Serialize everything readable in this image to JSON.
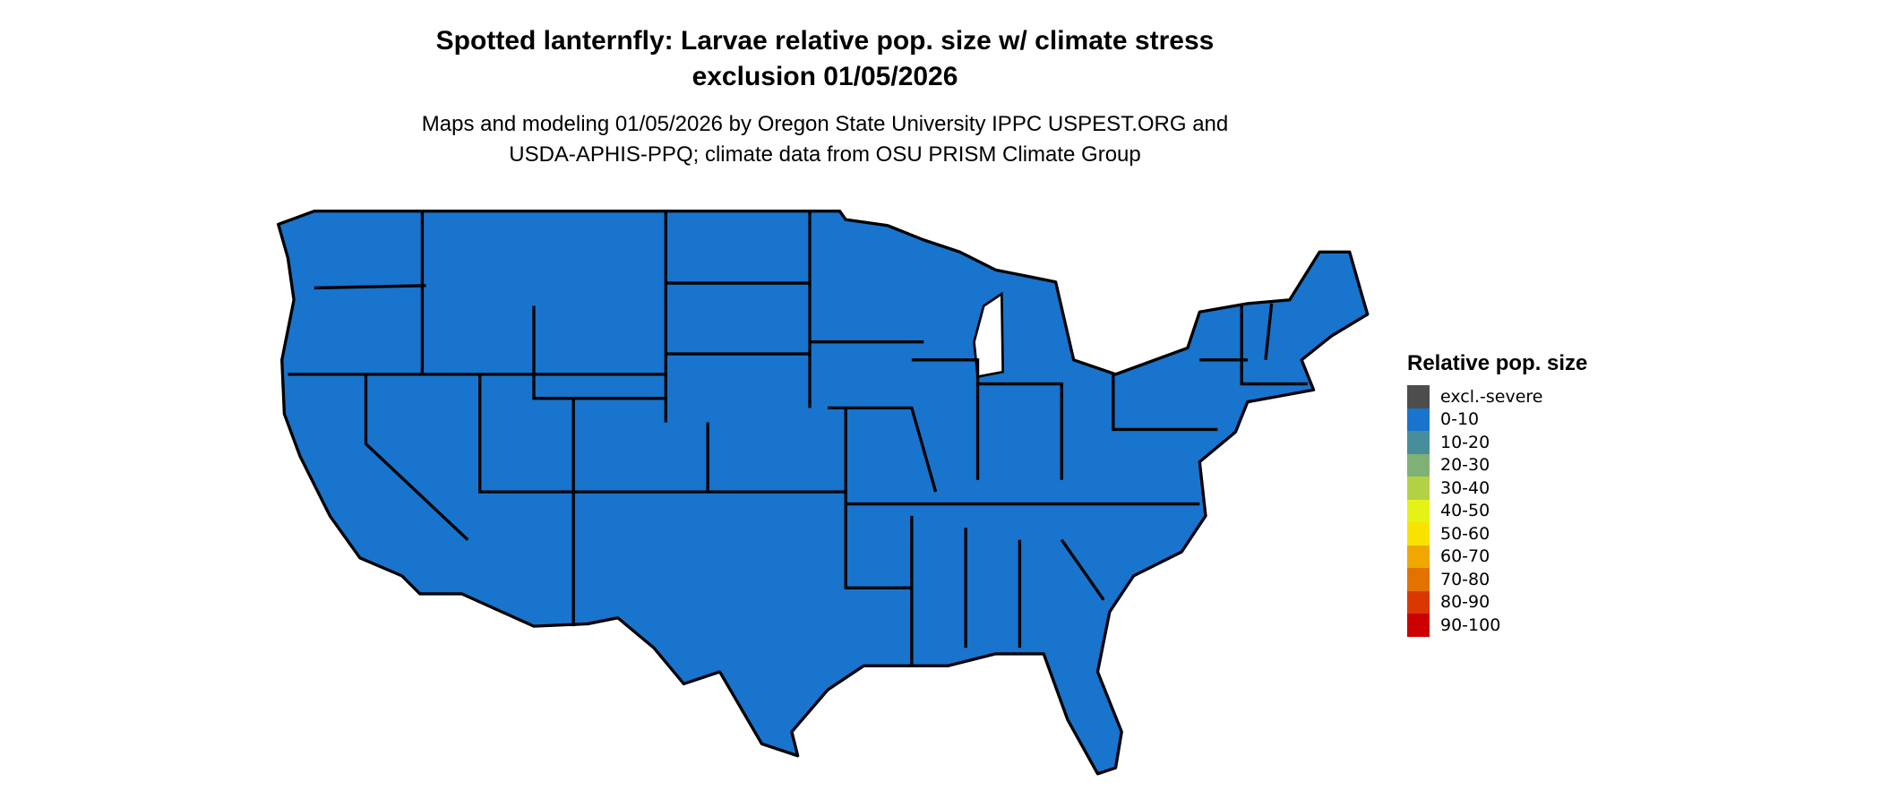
{
  "title_lines": [
    "Spotted lanternfly: Larvae relative pop. size w/ climate stress",
    "exclusion 01/05/2026"
  ],
  "subtitle_lines": [
    "Maps and modeling 01/05/2026 by Oregon State University IPPC USPEST.ORG and",
    "USDA-APHIS-PPQ; climate data from OSU PRISM Climate Group"
  ],
  "map": {
    "region": "Contiguous United States",
    "fill_color": "#1874CD",
    "border_color": "#000000",
    "all_states_category": "0-10"
  },
  "legend": {
    "title": "Relative pop. size",
    "items": [
      {
        "label": "excl.-severe",
        "color": "#4D4D4D"
      },
      {
        "label": "0-10",
        "color": "#1874CD"
      },
      {
        "label": "10-20",
        "color": "#478E9B"
      },
      {
        "label": "20-30",
        "color": "#7FB174"
      },
      {
        "label": "30-40",
        "color": "#B3D145"
      },
      {
        "label": "40-50",
        "color": "#E5F216"
      },
      {
        "label": "50-60",
        "color": "#F9E200"
      },
      {
        "label": "60-70",
        "color": "#F0A800"
      },
      {
        "label": "70-80",
        "color": "#E37200"
      },
      {
        "label": "80-90",
        "color": "#DA3800"
      },
      {
        "label": "90-100",
        "color": "#CC0000"
      }
    ]
  }
}
